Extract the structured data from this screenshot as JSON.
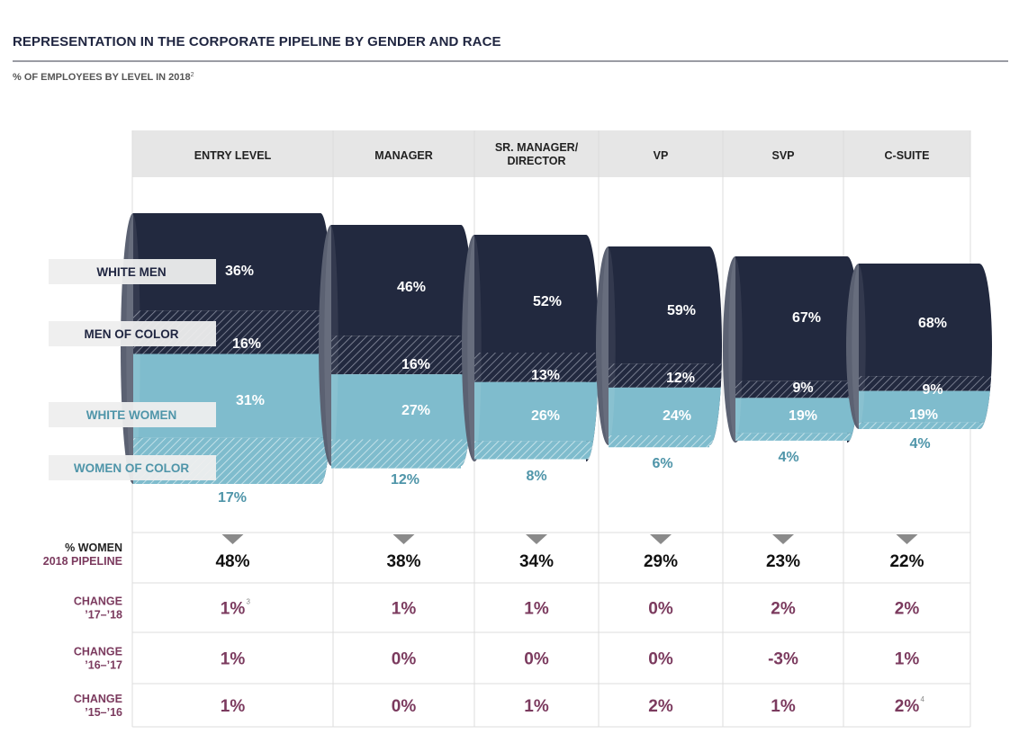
{
  "title": "REPRESENTATION IN THE CORPORATE PIPELINE BY GENDER AND RACE",
  "subtitle": "% OF EMPLOYEES BY LEVEL IN 2018",
  "subtitle_note": "2",
  "colors": {
    "white_men": "#22293f",
    "men_of_color": "#22293f",
    "white_women": "#7fbccd",
    "women_of_color": "#7fbccd",
    "header_bg": "#e6e6e6",
    "women_text": "#7b3a5e"
  },
  "chart_data": {
    "type": "bar",
    "stacked": true,
    "categories": [
      "ENTRY LEVEL",
      "MANAGER",
      "SR. MANAGER/\nDIRECTOR",
      "VP",
      "SVP",
      "C-SUITE"
    ],
    "series": [
      {
        "name": "WHITE MEN",
        "values": [
          36,
          46,
          52,
          59,
          67,
          68
        ]
      },
      {
        "name": "MEN OF COLOR",
        "values": [
          16,
          16,
          13,
          12,
          9,
          9
        ]
      },
      {
        "name": "WHITE WOMEN",
        "values": [
          31,
          27,
          26,
          24,
          19,
          19
        ]
      },
      {
        "name": "WOMEN OF COLOR",
        "values": [
          17,
          12,
          8,
          6,
          4,
          4
        ]
      }
    ],
    "value_labels": [
      [
        "36%",
        "16%",
        "31%",
        "17%"
      ],
      [
        "46%",
        "16%",
        "27%",
        "12%"
      ],
      [
        "52%",
        "13%",
        "26%",
        "8%"
      ],
      [
        "59%",
        "12%",
        "24%",
        "6%"
      ],
      [
        "67%",
        "9%",
        "19%",
        "4%"
      ],
      [
        "68%",
        "9%",
        "19%",
        "4%"
      ]
    ],
    "table": {
      "rows": [
        {
          "label": [
            "% WOMEN",
            "2018 PIPELINE"
          ],
          "values": [
            "48%",
            "38%",
            "34%",
            "29%",
            "23%",
            "22%"
          ],
          "notes": [
            "",
            "",
            "",
            "",
            "",
            ""
          ]
        },
        {
          "label": [
            "CHANGE",
            "’17–’18"
          ],
          "values": [
            "1%",
            "1%",
            "1%",
            "0%",
            "2%",
            "2%"
          ],
          "notes": [
            "3",
            "",
            "",
            "",
            "",
            ""
          ]
        },
        {
          "label": [
            "CHANGE",
            "’16–’17"
          ],
          "values": [
            "1%",
            "0%",
            "0%",
            "0%",
            "-3%",
            "1%"
          ],
          "notes": [
            "",
            "",
            "",
            "",
            "",
            ""
          ]
        },
        {
          "label": [
            "CHANGE",
            "’15–’16"
          ],
          "values": [
            "1%",
            "0%",
            "1%",
            "2%",
            "1%",
            "2%"
          ],
          "notes": [
            "",
            "",
            "",
            "",
            "",
            "4"
          ]
        }
      ]
    }
  }
}
